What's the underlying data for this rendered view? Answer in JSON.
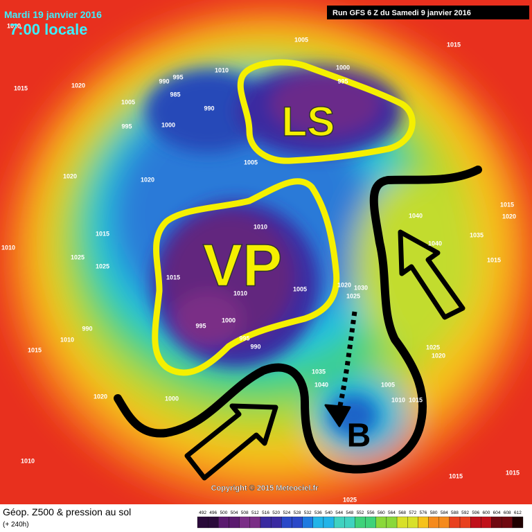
{
  "header": {
    "date": "Mardi 19 janvier 2016",
    "time": "7:00 locale",
    "run": "Run GFS 6 Z du Samedi 9 janvier 2016"
  },
  "annotations": {
    "ls": "LS",
    "vp": "VP",
    "b": "B"
  },
  "copyright": "Copyright © 2015 Meteociel.fr",
  "footer": {
    "title": "Géop. Z500 & pression au sol",
    "subtitle": "(+ 240h)"
  },
  "colorbar": [
    492,
    496,
    500,
    504,
    508,
    512,
    516,
    520,
    524,
    528,
    532,
    536,
    540,
    544,
    548,
    552,
    556,
    560,
    564,
    568,
    572,
    576,
    580,
    584,
    588,
    592,
    596,
    600,
    604,
    608,
    612
  ],
  "isobar_labels": [
    "1010",
    "1005",
    "1010",
    "1000",
    "995",
    "990",
    "995",
    "985",
    "1005",
    "990",
    "995",
    "1000",
    "1020",
    "1015",
    "1005",
    "1020",
    "1020",
    "1010",
    "1015",
    "1010",
    "1000",
    "995",
    "995",
    "990",
    "1005",
    "1020",
    "1030",
    "1025",
    "1035",
    "1040",
    "1005",
    "1010",
    "1015",
    "1015",
    "1025",
    "1025",
    "990",
    "1010",
    "1015",
    "1020",
    "1000",
    "1010",
    "1015",
    "1015",
    "1025",
    "1015",
    "1040",
    "1040",
    "1035",
    "1015",
    "1015",
    "1020",
    "1025",
    "1020",
    "1010"
  ]
}
